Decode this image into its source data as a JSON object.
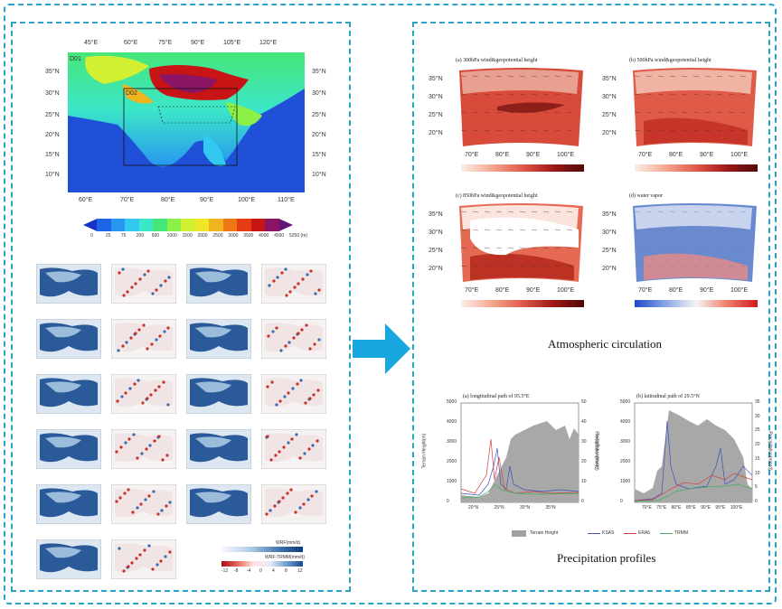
{
  "left": {
    "terrain_map": {
      "top_lon": [
        "45°E",
        "60°E",
        "75°E",
        "90°E",
        "105°E",
        "120°E"
      ],
      "bottom_lon": [
        "60°E",
        "70°E",
        "80°E",
        "90°E",
        "100°E",
        "110°E"
      ],
      "left_lat": [
        "35°N",
        "30°N",
        "25°N",
        "20°N",
        "15°N",
        "10°N"
      ],
      "right_lat": [
        "35°N",
        "30°N",
        "25°N",
        "20°N",
        "15°N",
        "10°N"
      ],
      "domain_outer": "D01",
      "domain_inner": "D02"
    },
    "colorbar": {
      "ticks": [
        "0",
        "25",
        "75",
        "200",
        "500",
        "1000",
        "1500",
        "2000",
        "2500",
        "3000",
        "3500",
        "4000",
        "4500",
        "5250 (m)"
      ],
      "colors": [
        "#1432c8",
        "#1e64e6",
        "#2896f0",
        "#32c8f0",
        "#3ce6c8",
        "#46e678",
        "#8cf046",
        "#d2f032",
        "#f0e628",
        "#f0b41e",
        "#f07814",
        "#e63c14",
        "#c81414",
        "#8c1464",
        "#641478"
      ]
    },
    "thumb_grid": {
      "row_count": 6
    },
    "legend": {
      "label_top": "WRF(mm/d)",
      "label_bottom": "WRF-TRMM(mm/d)",
      "ticks_bottom": [
        "-12",
        "-8",
        "-4",
        "0",
        "4",
        "8",
        "12"
      ]
    }
  },
  "arrow_color": "#1aa7e0",
  "right": {
    "maps": [
      {
        "title": "(a) 300hPa wind&geopotential height"
      },
      {
        "title": "(b) 500hPa wind&geopotential height"
      },
      {
        "title": "(c) 850hPa wind&geopotential height"
      },
      {
        "title": "(d) water vapor"
      }
    ],
    "map_lat": [
      "35°N",
      "30°N",
      "25°N",
      "20°N"
    ],
    "map_lon": [
      "70°E",
      "80°E",
      "90°E",
      "100°E"
    ],
    "atmos_caption": "Atmospheric circulation",
    "profiles": [
      {
        "title": "(a) longitudinal path of 95.5°E",
        "xticks": [
          "20°N",
          "25°N",
          "30°N",
          "35°N"
        ],
        "yleft": [
          "0",
          "1000",
          "2000",
          "3000",
          "4000",
          "5000"
        ],
        "yright": [
          "0",
          "10",
          "20",
          "30",
          "40",
          "50"
        ]
      },
      {
        "title": "(b) latitudinal path of 29.5°N",
        "xticks": [
          "70°E",
          "75°E",
          "80°E",
          "85°E",
          "90°E",
          "95°E",
          "100°E"
        ],
        "yleft": [
          "0",
          "1000",
          "2000",
          "3000",
          "4000",
          "5000"
        ],
        "yright": [
          "0",
          "5",
          "10",
          "15",
          "20",
          "25",
          "30",
          "35"
        ]
      }
    ],
    "y_left_label": "Terrain Height(m)",
    "y_right_label": "Precipitation(mm/d)",
    "legend": {
      "terrain": "Terrain Height",
      "ksas": "KSAS",
      "era5": "ERA5",
      "trmm": "TRMM"
    },
    "precip_caption": "Precipitation profiles"
  }
}
